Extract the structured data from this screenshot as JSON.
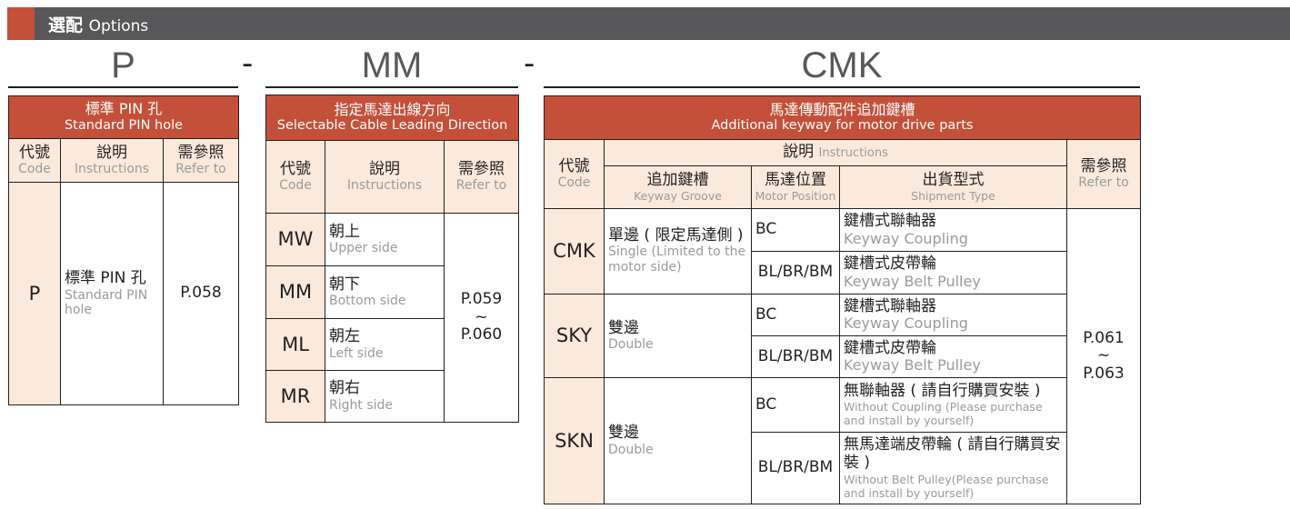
{
  "title": {
    "zh": "選配",
    "en": "Options"
  },
  "segments": {
    "p": "P",
    "mm": "MM",
    "cmk": "CMK",
    "sep": "-"
  },
  "colors": {
    "accent": "#c4503a",
    "header_bg": "#fbeadc",
    "bar": "#58575a"
  },
  "common": {
    "code_zh": "代號",
    "code_en": "Code",
    "inst_zh": "說明",
    "inst_en": "Instructions",
    "ref_zh": "需參照",
    "ref_en": "Refer to"
  },
  "table_p": {
    "title_zh": "標準 PIN 孔",
    "title_en": "Standard PIN hole",
    "code": "P",
    "desc_zh": "標準 PIN 孔",
    "desc_en": "Standard PIN hole",
    "ref": "P.058"
  },
  "table_mm": {
    "title_zh": "指定馬達出線方向",
    "title_en": "Selectable Cable Leading Direction",
    "rows": [
      {
        "code": "MW",
        "zh": "朝上",
        "en": "Upper side"
      },
      {
        "code": "MM",
        "zh": "朝下",
        "en": "Bottom side"
      },
      {
        "code": "ML",
        "zh": "朝左",
        "en": "Left side"
      },
      {
        "code": "MR",
        "zh": "朝右",
        "en": "Right side"
      }
    ],
    "ref_from": "P.059",
    "ref_tilde": "~",
    "ref_to": "P.060"
  },
  "table_cmk": {
    "title_zh": "馬達傳動配件追加鍵槽",
    "title_en": "Additional keyway for motor drive parts",
    "sub": {
      "groove_zh": "追加鍵槽",
      "groove_en": "Keyway Groove",
      "pos_zh": "馬達位置",
      "pos_en": "Motor Position",
      "ship_zh": "出貨型式",
      "ship_en": "Shipment Type"
    },
    "groups": [
      {
        "code": "CMK",
        "zh": "單邊 ( 限定馬達側 )",
        "en": "Single (Limited to the motor side)",
        "rows": [
          {
            "pos": "BC",
            "zh": "鍵槽式聯軸器",
            "en": "Keyway Coupling"
          },
          {
            "pos": "BL/BR/BM",
            "zh": "鍵槽式皮帶輪",
            "en": "Keyway Belt Pulley"
          }
        ]
      },
      {
        "code": "SKY",
        "zh": "雙邊",
        "en": "Double",
        "rows": [
          {
            "pos": "BC",
            "zh": "鍵槽式聯軸器",
            "en": "Keyway Coupling"
          },
          {
            "pos": "BL/BR/BM",
            "zh": "鍵槽式皮帶輪",
            "en": "Keyway Belt Pulley"
          }
        ]
      },
      {
        "code": "SKN",
        "zh": "雙邊",
        "en": "Double",
        "rows": [
          {
            "pos": "BC",
            "zh": "無聯軸器 ( 請自行購買安裝 )",
            "en": "Without Coupling (Please purchase and install by yourself)"
          },
          {
            "pos": "BL/BR/BM",
            "zh": "無馬達端皮帶輪 ( 請自行購買安裝 )",
            "en": "Without Belt Pulley(Please purchase and install by yourself)"
          }
        ]
      }
    ],
    "ref_from": "P.061",
    "ref_tilde": "~",
    "ref_to": "P.063"
  }
}
